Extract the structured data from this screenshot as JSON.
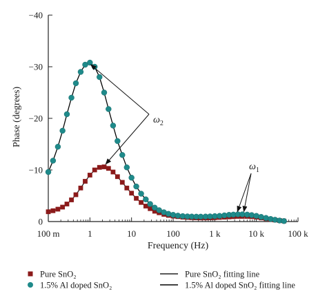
{
  "chart_data": {
    "type": "scatter",
    "xlabel": "Frequency (Hz)",
    "ylabel": "Phase (degrees)",
    "x_scale": "log",
    "xlim": [
      0.1,
      100000
    ],
    "ylim": [
      0,
      -40
    ],
    "x_ticks": [
      {
        "value": 0.1,
        "label": "100 m"
      },
      {
        "value": 1,
        "label": "1"
      },
      {
        "value": 10,
        "label": "10"
      },
      {
        "value": 100,
        "label": "100"
      },
      {
        "value": 1000,
        "label": "1 k"
      },
      {
        "value": 10000,
        "label": "10 k"
      },
      {
        "value": 100000,
        "label": "100 k"
      }
    ],
    "y_ticks": [
      {
        "value": 0,
        "label": "0"
      },
      {
        "value": -10,
        "label": "−10"
      },
      {
        "value": -20,
        "label": "−20"
      },
      {
        "value": -30,
        "label": "−30"
      },
      {
        "value": -40,
        "label": "−40"
      }
    ],
    "grid": false,
    "legend_placement": "bottom",
    "series": [
      {
        "name": "Pure SnO₂",
        "marker": "square",
        "color": "#8b1a1a",
        "x": [
          0.1,
          0.13,
          0.17,
          0.22,
          0.28,
          0.36,
          0.46,
          0.6,
          0.77,
          1.0,
          1.3,
          1.7,
          2.2,
          2.8,
          3.6,
          4.6,
          6.0,
          7.7,
          10,
          13,
          17,
          22,
          28,
          36,
          46,
          60,
          77,
          100,
          130,
          170,
          220,
          280,
          360,
          460,
          600,
          770,
          1000,
          1300,
          1700,
          2200,
          2800,
          3600,
          4600,
          6000,
          7700,
          10000,
          13000,
          17000,
          22000,
          28000,
          36000,
          46000
        ],
        "y": [
          -1.9,
          -2.1,
          -2.4,
          -2.8,
          -3.4,
          -4.2,
          -5.2,
          -6.5,
          -7.8,
          -9.0,
          -10.0,
          -10.5,
          -10.6,
          -10.3,
          -9.6,
          -8.7,
          -7.6,
          -6.5,
          -5.5,
          -4.5,
          -3.7,
          -3.0,
          -2.5,
          -2.0,
          -1.7,
          -1.4,
          -1.2,
          -1.05,
          -0.95,
          -0.85,
          -0.8,
          -0.75,
          -0.72,
          -0.7,
          -0.7,
          -0.72,
          -0.75,
          -0.8,
          -0.85,
          -0.9,
          -0.95,
          -1.0,
          -1.0,
          -1.0,
          -0.95,
          -0.85,
          -0.7,
          -0.55,
          -0.4,
          -0.3,
          -0.2,
          -0.1
        ]
      },
      {
        "name": "1.5% Al doped SnO₂",
        "marker": "circle",
        "color": "#1f8a8a",
        "x": [
          0.1,
          0.13,
          0.17,
          0.22,
          0.28,
          0.36,
          0.46,
          0.6,
          0.77,
          1.0,
          1.3,
          1.7,
          2.2,
          2.8,
          3.6,
          4.6,
          6.0,
          7.7,
          10,
          13,
          17,
          22,
          28,
          36,
          46,
          60,
          77,
          100,
          130,
          170,
          220,
          280,
          360,
          460,
          600,
          770,
          1000,
          1300,
          1700,
          2200,
          2800,
          3600,
          4600,
          6000,
          7700,
          10000,
          13000,
          17000,
          22000,
          28000,
          36000,
          46000
        ],
        "y": [
          -9.6,
          -11.8,
          -14.5,
          -17.6,
          -20.8,
          -24.0,
          -26.8,
          -29.0,
          -30.4,
          -30.8,
          -30.0,
          -28.0,
          -25.0,
          -21.8,
          -18.6,
          -15.6,
          -12.9,
          -10.5,
          -8.5,
          -6.8,
          -5.4,
          -4.3,
          -3.4,
          -2.7,
          -2.2,
          -1.8,
          -1.5,
          -1.3,
          -1.15,
          -1.05,
          -1.0,
          -0.97,
          -0.95,
          -0.95,
          -0.97,
          -1.0,
          -1.05,
          -1.1,
          -1.2,
          -1.3,
          -1.35,
          -1.4,
          -1.4,
          -1.35,
          -1.25,
          -1.1,
          -0.9,
          -0.7,
          -0.5,
          -0.35,
          -0.2,
          -0.1
        ]
      }
    ],
    "fit_lines": [
      {
        "name": "Pure SnO₂ fitting line",
        "color": "#222222"
      },
      {
        "name": "1.5% Al doped SnO₂ fitting line",
        "color": "#000000"
      }
    ],
    "annotations": [
      {
        "label": "ω",
        "subscript": "2",
        "targets": [
          {
            "x": 1.05,
            "y": -30.8
          },
          {
            "x": 2.4,
            "y": -10.6
          }
        ]
      },
      {
        "label": "ω",
        "subscript": "1",
        "targets": [
          {
            "x": 3500,
            "y": -1.4
          },
          {
            "x": 5000,
            "y": -1.4
          }
        ]
      }
    ]
  }
}
